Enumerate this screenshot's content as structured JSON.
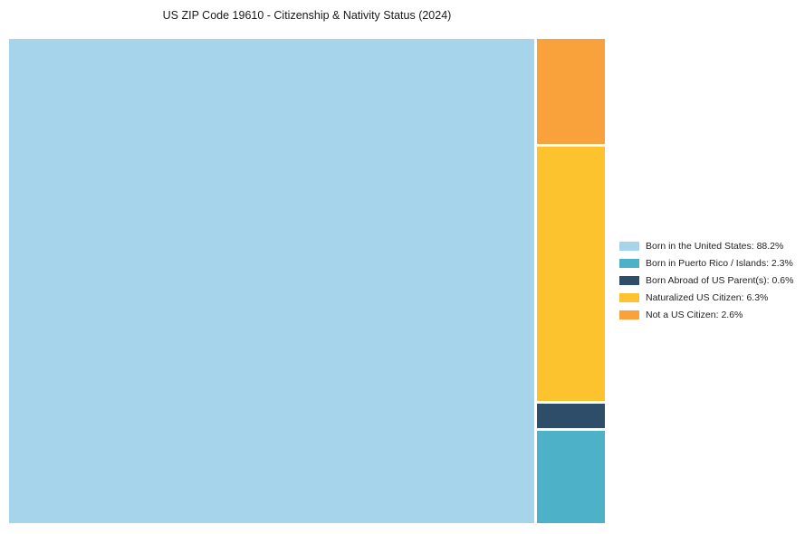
{
  "title": "US ZIP Code 19610 - Citizenship & Nativity Status (2024)",
  "chart_data": {
    "type": "treemap",
    "title": "US ZIP Code 19610 - Citizenship & Nativity Status (2024)",
    "unit": "%",
    "segments": [
      {
        "name": "Born in the United States",
        "value": 88.2,
        "color": "#a6d4ea",
        "legend_label": "Born in the United States: 88.2%"
      },
      {
        "name": "Born in Puerto Rico / Islands",
        "value": 2.3,
        "color": "#4db2c8",
        "legend_label": "Born in Puerto Rico / Islands: 2.3%"
      },
      {
        "name": "Born Abroad of US Parent(s)",
        "value": 0.6,
        "color": "#2e4d68",
        "legend_label": "Born Abroad of US Parent(s): 0.6%"
      },
      {
        "name": "Naturalized US Citizen",
        "value": 6.3,
        "color": "#fdc32f",
        "legend_label": "Naturalized US Citizen: 6.3%"
      },
      {
        "name": "Not a US Citizen",
        "value": 2.6,
        "color": "#f9a23c",
        "legend_label": "Not a US Citizen: 2.6%"
      }
    ],
    "layout": {
      "main_segment": "Born in the United States",
      "right_column_order": [
        "Not a US Citizen",
        "Naturalized US Citizen",
        "Born Abroad of US Parent(s)",
        "Born in Puerto Rico / Islands"
      ],
      "legend_position": "right",
      "grid": false
    }
  }
}
